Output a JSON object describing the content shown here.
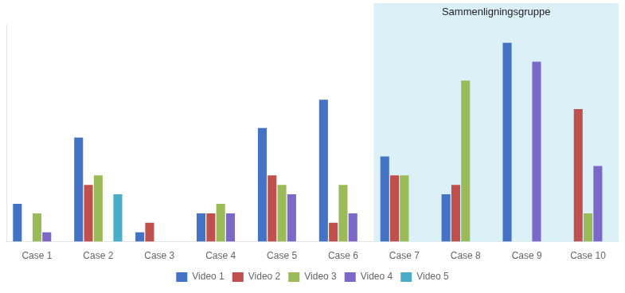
{
  "chart_data": {
    "type": "bar",
    "categories": [
      "Case 1",
      "Case 2",
      "Case 3",
      "Case 4",
      "Case 5",
      "Case 6",
      "Case 7",
      "Case 8",
      "Case 9",
      "Case 10"
    ],
    "series": [
      {
        "name": "Video 1",
        "color": "#4472C4",
        "values": [
          4,
          11,
          1,
          3,
          12,
          15,
          9,
          5,
          21,
          0
        ]
      },
      {
        "name": "Video 2",
        "color": "#C0504D",
        "values": [
          0,
          6,
          2,
          3,
          7,
          2,
          7,
          6,
          0,
          14
        ]
      },
      {
        "name": "Video 3",
        "color": "#9BBB59",
        "values": [
          3,
          7,
          0,
          4,
          6,
          6,
          7,
          17,
          0,
          3
        ]
      },
      {
        "name": "Video 4",
        "color": "#7B68C8",
        "values": [
          1,
          0,
          0,
          3,
          5,
          3,
          0,
          0,
          19,
          8
        ]
      },
      {
        "name": "Video 5",
        "color": "#4BACC6",
        "values": [
          0,
          5,
          0,
          0,
          0,
          0,
          0,
          0,
          0,
          0
        ]
      }
    ],
    "annotations": [
      {
        "text": "Sammenligningsgruppe",
        "from": "Case 7",
        "to": "Case 10",
        "color": "#DCF0F8"
      }
    ],
    "ylim": [
      0,
      23
    ],
    "tick_labels": "x",
    "grid": false,
    "legend": "bottom"
  }
}
